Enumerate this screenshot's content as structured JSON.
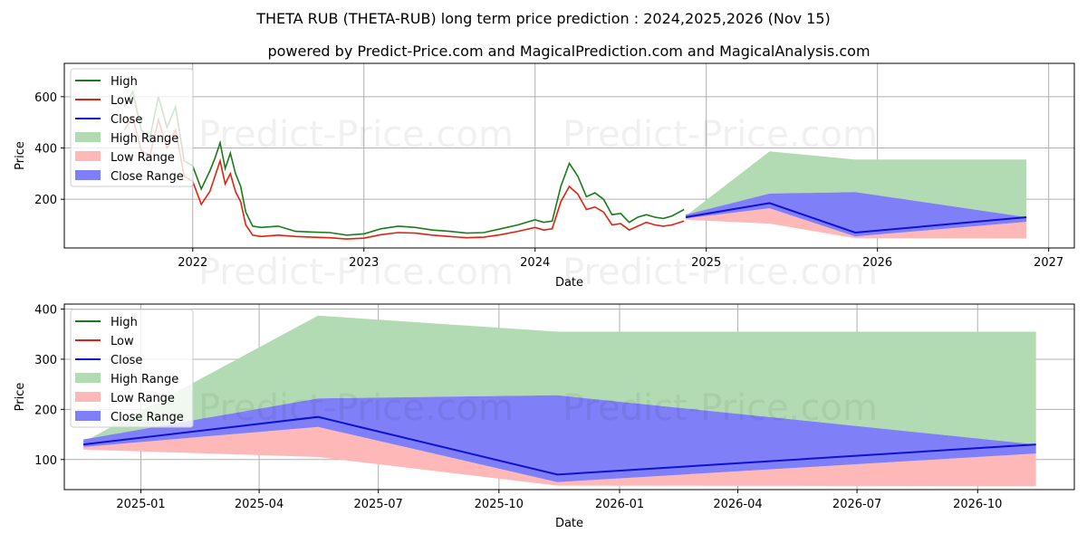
{
  "header": {
    "title": "THETA RUB (THETA-RUB) long term price prediction : 2024,2025,2026 (Nov 15)",
    "subtitle": "powered by Predict-Price.com and MagicalPrediction.com and MagicalAnalysis.com"
  },
  "watermark": "Predict-Price.com",
  "colors": {
    "high": "#1a7a1a",
    "low": "#e02010",
    "close": "#1010d0",
    "high_range": "#b3dbb3",
    "low_range": "#ffb8b8",
    "close_range": "#7f7ff7",
    "grid": "#b0b0b0"
  },
  "chart_data": [
    {
      "type": "line",
      "title": "",
      "xlabel": "Date",
      "ylabel": "Price",
      "xlim": [
        2021.25,
        2027.15
      ],
      "ylim": [
        10,
        730
      ],
      "xticks": [
        2022,
        2023,
        2024,
        2025,
        2026,
        2027
      ],
      "xtick_labels": [
        "2022",
        "2023",
        "2024",
        "2025",
        "2026",
        "2027"
      ],
      "yticks": [
        200,
        400,
        600
      ],
      "ytick_labels": [
        "200",
        "400",
        "600"
      ],
      "grid": true,
      "legend": {
        "position": "top-left",
        "entries": [
          "High",
          "Low",
          "Close",
          "High Range",
          "Low Range",
          "Close Range"
        ]
      },
      "history": {
        "x": [
          2021.6,
          2021.65,
          2021.7,
          2021.75,
          2021.8,
          2021.85,
          2021.9,
          2021.95,
          2022.0,
          2022.05,
          2022.1,
          2022.13,
          2022.16,
          2022.19,
          2022.22,
          2022.25,
          2022.28,
          2022.31,
          2022.35,
          2022.4,
          2022.5,
          2022.6,
          2022.7,
          2022.8,
          2022.9,
          2023.0,
          2023.1,
          2023.2,
          2023.3,
          2023.4,
          2023.5,
          2023.6,
          2023.7,
          2023.8,
          2023.9,
          2024.0,
          2024.05,
          2024.1,
          2024.15,
          2024.2,
          2024.25,
          2024.3,
          2024.35,
          2024.4,
          2024.45,
          2024.5,
          2024.55,
          2024.6,
          2024.65,
          2024.7,
          2024.75,
          2024.8,
          2024.87
        ],
        "high": [
          560,
          620,
          470,
          440,
          600,
          480,
          560,
          350,
          330,
          240,
          310,
          360,
          420,
          320,
          380,
          300,
          250,
          150,
          95,
          90,
          95,
          75,
          72,
          70,
          60,
          65,
          85,
          95,
          90,
          80,
          75,
          68,
          70,
          85,
          100,
          120,
          110,
          115,
          250,
          340,
          290,
          210,
          225,
          200,
          140,
          145,
          110,
          130,
          140,
          130,
          125,
          135,
          160
        ],
        "low": [
          470,
          520,
          390,
          370,
          510,
          400,
          470,
          290,
          270,
          180,
          230,
          290,
          350,
          260,
          300,
          230,
          190,
          100,
          60,
          55,
          60,
          55,
          52,
          50,
          45,
          48,
          62,
          70,
          68,
          60,
          55,
          50,
          52,
          62,
          75,
          90,
          80,
          85,
          190,
          250,
          220,
          160,
          170,
          150,
          100,
          105,
          80,
          95,
          110,
          100,
          95,
          100,
          115
        ]
      },
      "forecast": {
        "x": [
          2024.88,
          2025.37,
          2025.87,
          2026.87
        ],
        "close": [
          130,
          185,
          70,
          130
        ],
        "high_range_upper": [
          135,
          387,
          355,
          355
        ],
        "close_range_upper": [
          140,
          222,
          228,
          130
        ],
        "close_range_lower": [
          125,
          165,
          55,
          112
        ],
        "low_range_lower": [
          120,
          105,
          48,
          47
        ]
      }
    },
    {
      "type": "line",
      "title": "",
      "xlabel": "Date",
      "ylabel": "Price",
      "xlim": [
        2024.84,
        2026.95
      ],
      "ylim": [
        40,
        410
      ],
      "xticks": [
        2025.0,
        2025.247,
        2025.496,
        2025.748,
        2026.0,
        2026.247,
        2026.496,
        2026.748
      ],
      "xtick_labels": [
        "2025-01",
        "2025-04",
        "2025-07",
        "2025-10",
        "2026-01",
        "2026-04",
        "2026-07",
        "2026-10"
      ],
      "yticks": [
        100,
        200,
        300,
        400
      ],
      "ytick_labels": [
        "100",
        "200",
        "300",
        "400"
      ],
      "grid": true,
      "legend": {
        "position": "top-left",
        "entries": [
          "High",
          "Low",
          "Close",
          "High Range",
          "Low Range",
          "Close Range"
        ]
      },
      "forecast": {
        "x": [
          2024.88,
          2025.37,
          2025.87,
          2026.87
        ],
        "close": [
          130,
          185,
          70,
          130
        ],
        "high_range_upper": [
          135,
          387,
          355,
          355
        ],
        "close_range_upper": [
          140,
          222,
          228,
          130
        ],
        "close_range_lower": [
          125,
          165,
          55,
          112
        ],
        "low_range_lower": [
          120,
          105,
          48,
          47
        ]
      }
    }
  ]
}
